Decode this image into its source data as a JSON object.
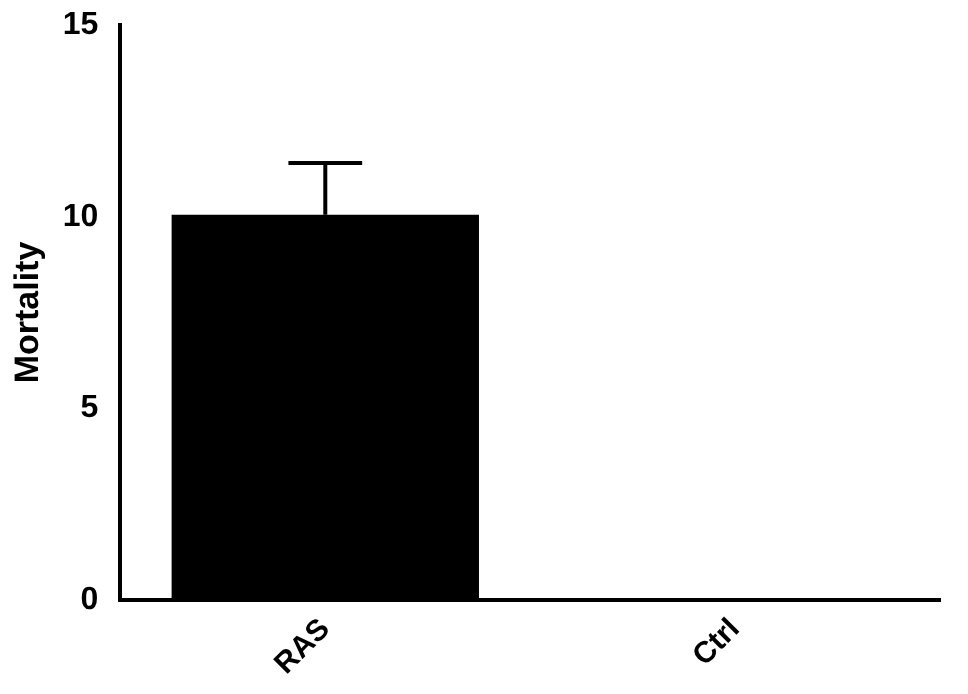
{
  "chart_data": {
    "type": "bar",
    "ylabel": "Mortality",
    "categories": [
      "RAS",
      "Ctrl"
    ],
    "values": [
      10.05,
      0
    ],
    "errors": [
      [
        10.05,
        11.4
      ],
      null
    ],
    "color": "#000000",
    "ylim": [
      0,
      15
    ],
    "yticks": [
      0,
      5,
      10,
      15
    ],
    "grid": false,
    "legend": false
  }
}
